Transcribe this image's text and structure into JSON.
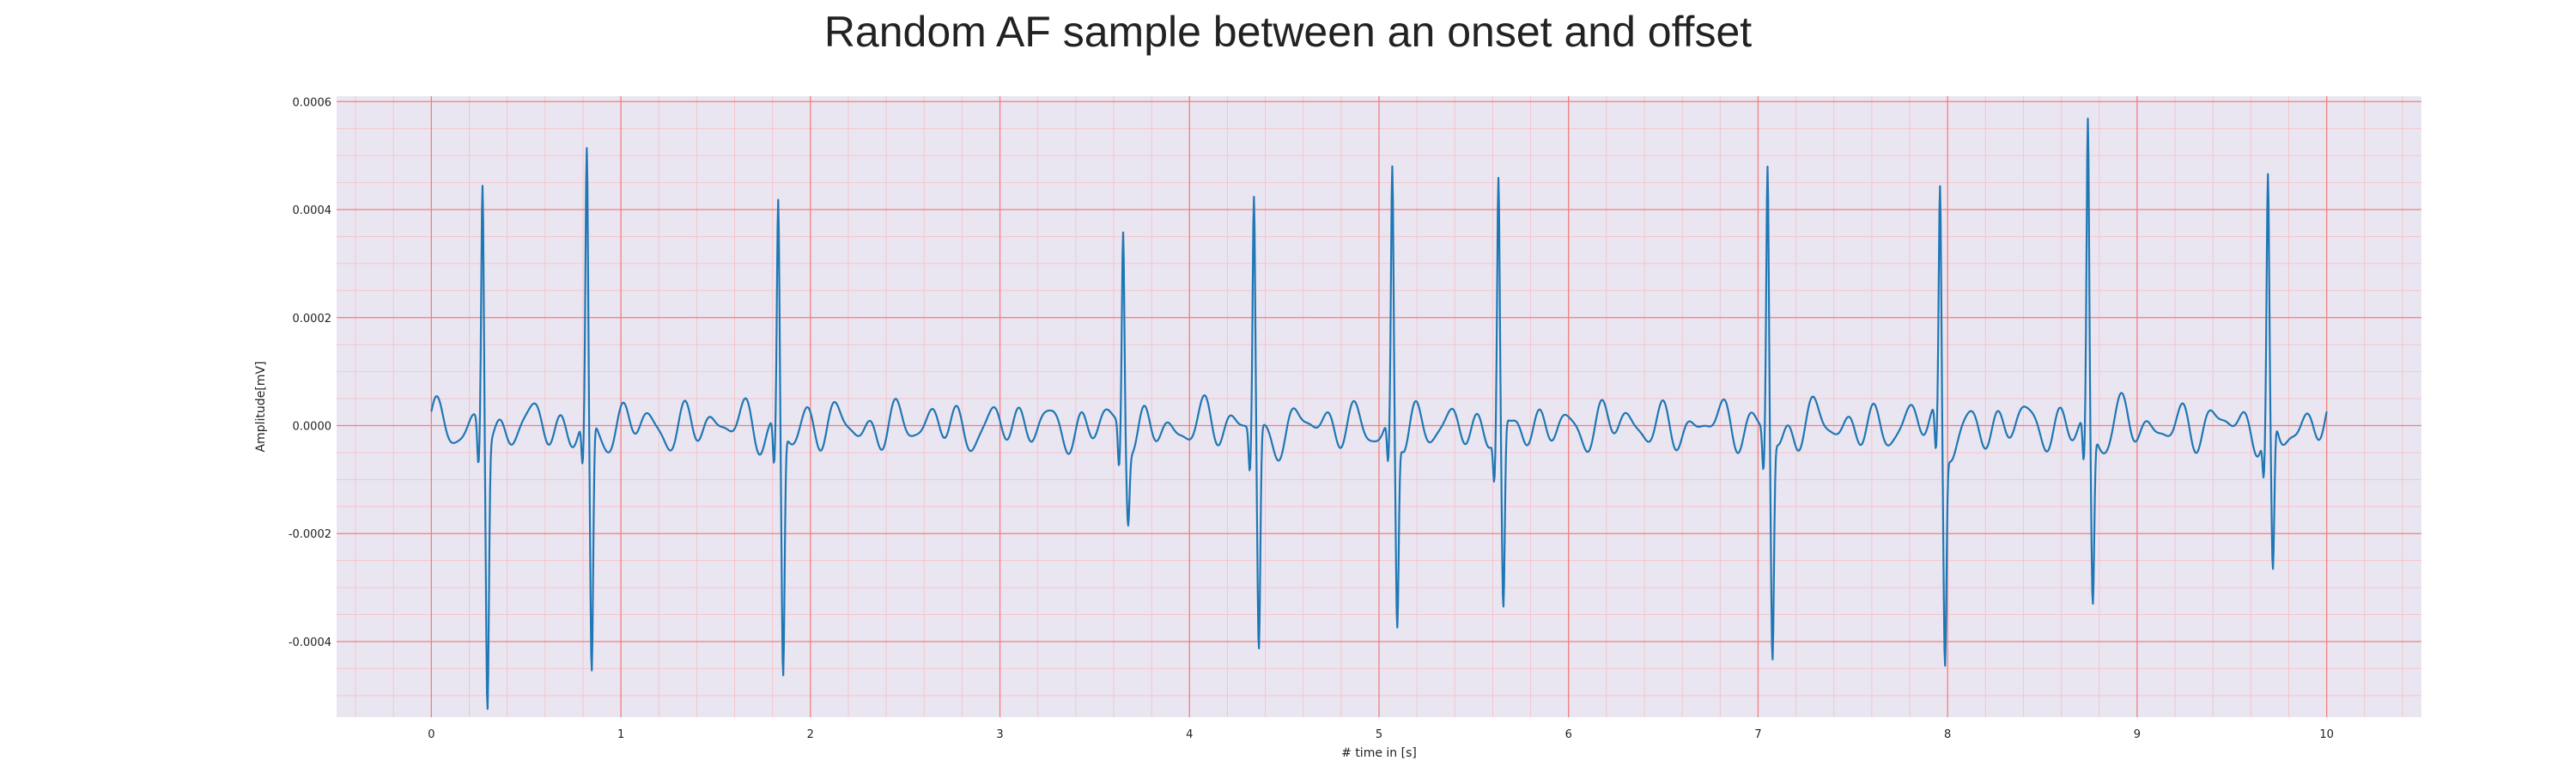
{
  "chart_data": {
    "type": "line",
    "title": "Random AF sample between an onset and offset",
    "xlabel": "# time in [s]",
    "ylabel": "Amplitude[mV]",
    "xlim": [
      -0.5,
      10.5
    ],
    "ylim": [
      -0.00054,
      0.00061
    ],
    "x_ticks": [
      0,
      1,
      2,
      3,
      4,
      5,
      6,
      7,
      8,
      9,
      10
    ],
    "x_tick_labels": [
      "0",
      "1",
      "2",
      "3",
      "4",
      "5",
      "6",
      "7",
      "8",
      "9",
      "10"
    ],
    "y_ticks": [
      -0.0004,
      -0.0002,
      0.0,
      0.0002,
      0.0004,
      0.0006
    ],
    "y_tick_labels": [
      "-0.0004",
      "-0.0002",
      "0.0000",
      "0.0002",
      "0.0004",
      "0.0006"
    ],
    "grid": true,
    "minor_grid": true,
    "colors": {
      "line": "#1f77b4",
      "background": "#eae6f1",
      "major_grid": "#f08080",
      "minor_grid": "#f4c4cc"
    },
    "series": [
      {
        "beats": [
          {
            "t": 0.27,
            "peak": 0.000465,
            "trough": -0.00049
          },
          {
            "t": 0.82,
            "peak": 0.000495,
            "trough": -0.00047
          },
          {
            "t": 1.83,
            "peak": 0.00042,
            "trough": -0.00045
          },
          {
            "t": 3.65,
            "peak": 0.000375,
            "trough": -0.00014
          },
          {
            "t": 4.34,
            "peak": 0.000435,
            "trough": -0.00041
          },
          {
            "t": 5.07,
            "peak": 0.000465,
            "trough": -0.00036
          },
          {
            "t": 5.63,
            "peak": 0.00046,
            "trough": -0.00035
          },
          {
            "t": 7.05,
            "peak": 0.00049,
            "trough": -0.00041
          },
          {
            "t": 7.96,
            "peak": 0.000435,
            "trough": -0.000405
          },
          {
            "t": 8.74,
            "peak": 0.00056,
            "trough": -0.00032
          },
          {
            "t": 9.69,
            "peak": 0.000445,
            "trough": -0.00029
          }
        ],
        "baseline_amplitude": 5e-05,
        "baseline_frequency_hz": 6.2
      }
    ]
  }
}
